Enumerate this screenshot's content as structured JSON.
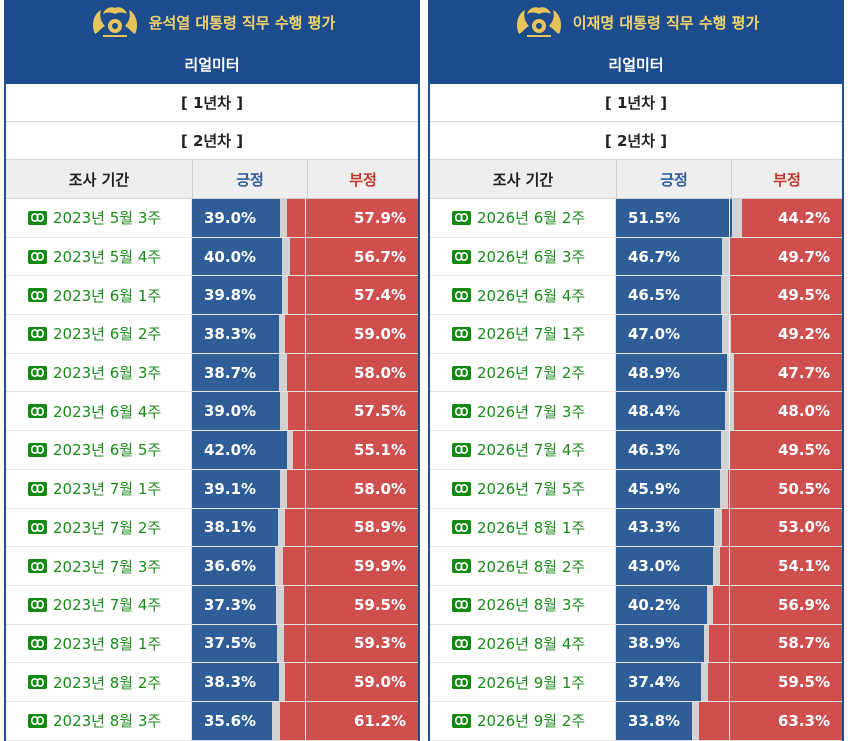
{
  "panels": [
    {
      "title": "윤석열 대통령 직무 수행 평가",
      "subtitle": "리얼미터",
      "year_tabs": [
        "[ 1년차 ]",
        "[ 2년차 ]"
      ],
      "columns": {
        "period": "조사 기간",
        "positive": "긍정",
        "negative": "부정"
      },
      "rows": [
        {
          "period": "2023년 5월 3주",
          "pos": "39.0%",
          "neg": "57.9%"
        },
        {
          "period": "2023년 5월 4주",
          "pos": "40.0%",
          "neg": "56.7%"
        },
        {
          "period": "2023년 6월 1주",
          "pos": "39.8%",
          "neg": "57.4%"
        },
        {
          "period": "2023년 6월 2주",
          "pos": "38.3%",
          "neg": "59.0%"
        },
        {
          "period": "2023년 6월 3주",
          "pos": "38.7%",
          "neg": "58.0%"
        },
        {
          "period": "2023년 6월 4주",
          "pos": "39.0%",
          "neg": "57.5%"
        },
        {
          "period": "2023년 6월 5주",
          "pos": "42.0%",
          "neg": "55.1%"
        },
        {
          "period": "2023년 7월 1주",
          "pos": "39.1%",
          "neg": "58.0%"
        },
        {
          "period": "2023년 7월 2주",
          "pos": "38.1%",
          "neg": "58.9%"
        },
        {
          "period": "2023년 7월 3주",
          "pos": "36.6%",
          "neg": "59.9%"
        },
        {
          "period": "2023년 7월 4주",
          "pos": "37.3%",
          "neg": "59.5%"
        },
        {
          "period": "2023년 8월 1주",
          "pos": "37.5%",
          "neg": "59.3%"
        },
        {
          "period": "2023년 8월 2주",
          "pos": "38.3%",
          "neg": "59.0%"
        },
        {
          "period": "2023년 8월 3주",
          "pos": "35.6%",
          "neg": "61.2%"
        }
      ]
    },
    {
      "title": "이재명 대통령 직무 수행 평가",
      "subtitle": "리얼미터",
      "year_tabs": [
        "[ 1년차 ]",
        "[ 2년차 ]"
      ],
      "columns": {
        "period": "조사 기간",
        "positive": "긍정",
        "negative": "부정"
      },
      "rows": [
        {
          "period": "2026년 6월 2주",
          "pos": "51.5%",
          "neg": "44.2%"
        },
        {
          "period": "2026년 6월 3주",
          "pos": "46.7%",
          "neg": "49.7%"
        },
        {
          "period": "2026년 6월 4주",
          "pos": "46.5%",
          "neg": "49.5%"
        },
        {
          "period": "2026년 7월 1주",
          "pos": "47.0%",
          "neg": "49.2%"
        },
        {
          "period": "2026년 7월 2주",
          "pos": "48.9%",
          "neg": "47.7%"
        },
        {
          "period": "2026년 7월 3주",
          "pos": "48.4%",
          "neg": "48.0%"
        },
        {
          "period": "2026년 7월 4주",
          "pos": "46.3%",
          "neg": "49.5%"
        },
        {
          "period": "2026년 7월 5주",
          "pos": "45.9%",
          "neg": "50.5%"
        },
        {
          "period": "2026년 8월 1주",
          "pos": "43.3%",
          "neg": "53.0%"
        },
        {
          "period": "2026년 8월 2주",
          "pos": "43.0%",
          "neg": "54.1%"
        },
        {
          "period": "2026년 8월 3주",
          "pos": "40.2%",
          "neg": "56.9%"
        },
        {
          "period": "2026년 8월 4주",
          "pos": "38.9%",
          "neg": "58.7%"
        },
        {
          "period": "2026년 9월 1주",
          "pos": "37.4%",
          "neg": "59.5%"
        },
        {
          "period": "2026년 9월 2주",
          "pos": "33.8%",
          "neg": "63.3%"
        }
      ]
    }
  ],
  "colors": {
    "header": "#1d4c8c",
    "title": "#f3d36a",
    "positive": "#2f5d98",
    "negative": "#cf4f4f",
    "neutral": "#d2d2d2",
    "link": "#1a8a1a"
  },
  "icons": {
    "emblem": "presidential-emblem-icon",
    "link": "link-icon"
  }
}
